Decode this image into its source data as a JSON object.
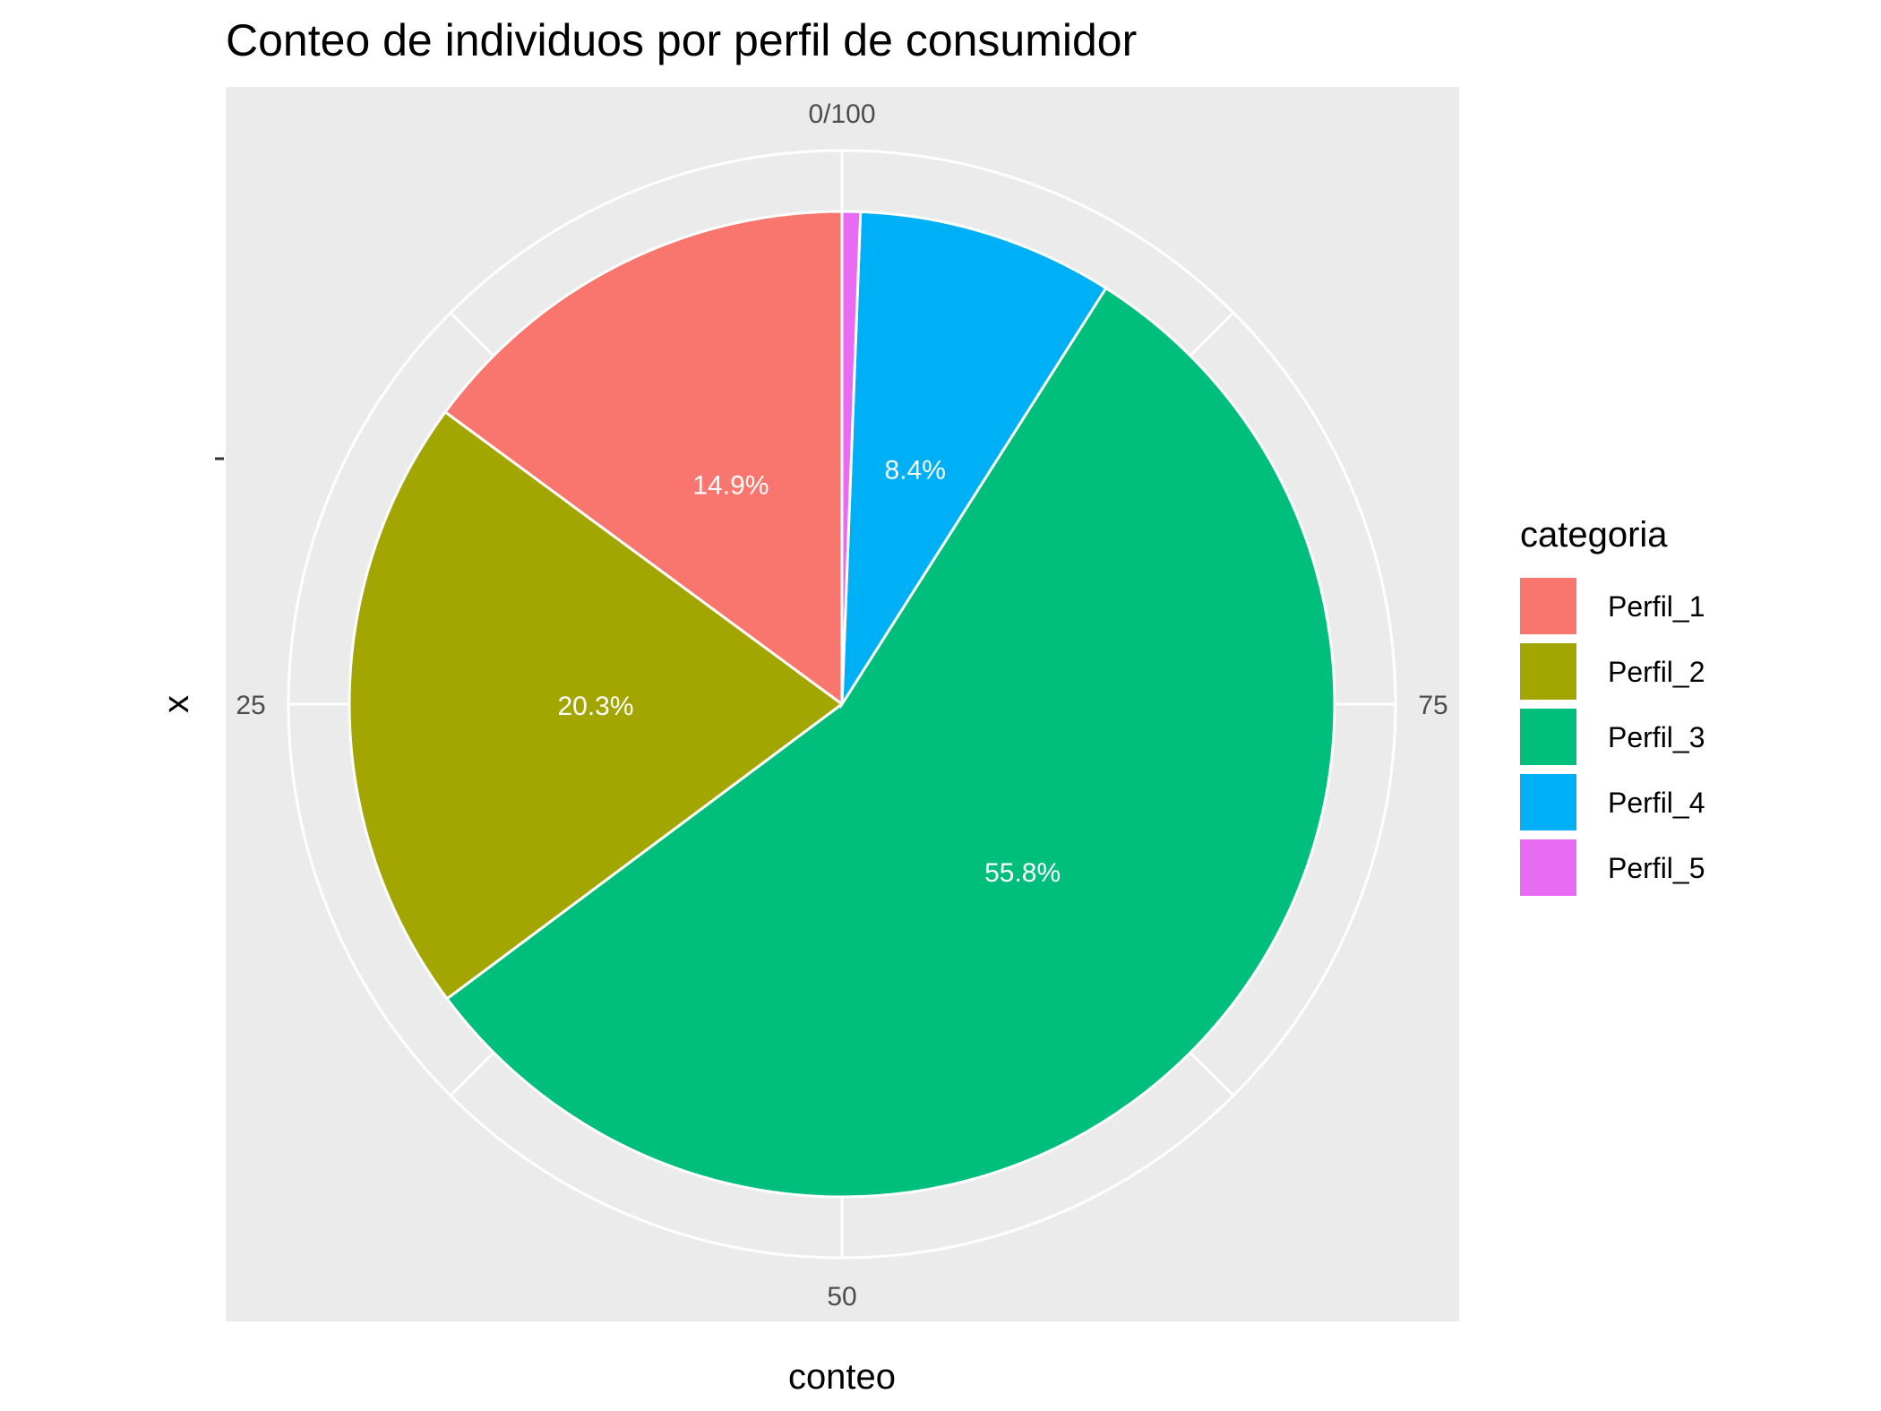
{
  "chart_data": {
    "type": "pie",
    "title": "Conteo de individuos por perfil de consumidor",
    "xlabel": "conteo",
    "ylabel": "x",
    "theta_ticks": [
      "0/100",
      "25",
      "50",
      "75"
    ],
    "theta_tick_values": [
      0,
      25,
      50,
      75
    ],
    "theta_range": [
      0,
      100
    ],
    "direction": "counterclockwise",
    "grid": true,
    "legend": {
      "title": "categoria",
      "position": "right"
    },
    "categories": [
      "Perfil_1",
      "Perfil_2",
      "Perfil_3",
      "Perfil_4",
      "Perfil_5"
    ],
    "values": [
      14.9,
      20.3,
      55.8,
      8.4,
      0.6
    ],
    "labels": [
      "14.9%",
      "20.3%",
      "55.8%",
      "8.4%",
      ""
    ],
    "colors": [
      "#F8766D",
      "#A3A500",
      "#00BF7D",
      "#00B0F6",
      "#E76BF3"
    ]
  }
}
